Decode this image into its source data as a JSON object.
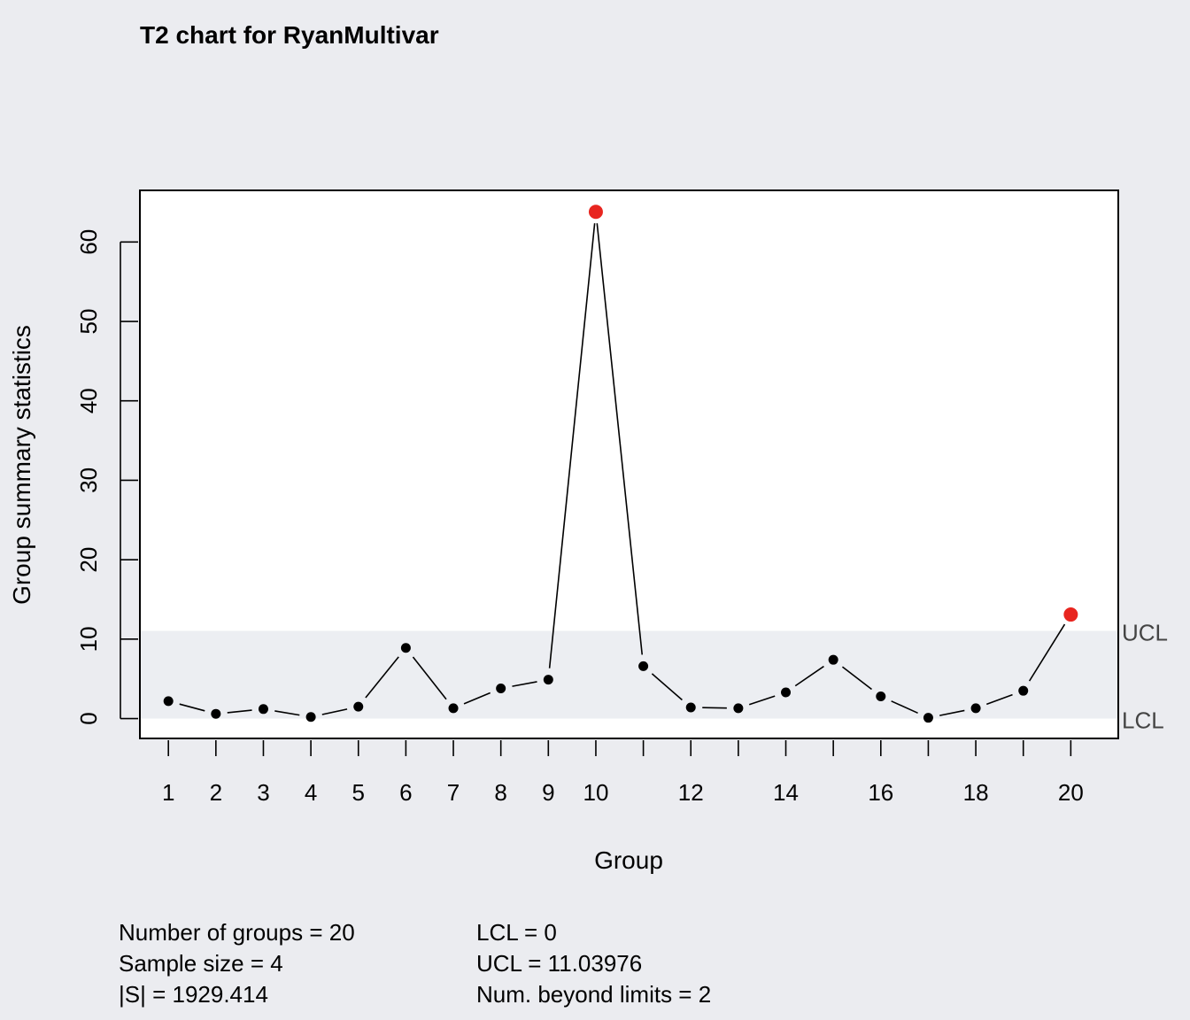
{
  "chart_data": {
    "type": "line",
    "title": "T2 chart for RyanMultivar",
    "xlabel": "Group",
    "ylabel": "Group summary statistics",
    "x": [
      1,
      2,
      3,
      4,
      5,
      6,
      7,
      8,
      9,
      10,
      11,
      12,
      13,
      14,
      15,
      16,
      17,
      18,
      19,
      20
    ],
    "values": [
      2.2,
      0.6,
      1.2,
      0.2,
      1.5,
      8.9,
      1.3,
      3.8,
      4.9,
      63.8,
      6.6,
      1.4,
      1.3,
      3.3,
      7.4,
      2.8,
      0.1,
      1.3,
      3.5,
      13.1
    ],
    "xlim": [
      0.4,
      21.0
    ],
    "ylim": [
      -2.5,
      66.5
    ],
    "x_tick_labels": [
      "1",
      "2",
      "3",
      "4",
      "5",
      "6",
      "7",
      "8",
      "9",
      "10",
      "",
      "12",
      "",
      "14",
      "",
      "16",
      "",
      "18",
      "",
      "20"
    ],
    "y_ticks": [
      0,
      10,
      20,
      30,
      40,
      50,
      60
    ],
    "limits": {
      "UCL": 11.03976,
      "LCL": 0
    },
    "limit_labels": {
      "ucl": "UCL",
      "lcl": "LCL"
    },
    "beyond_limits_color": "#e8251f",
    "in_control_color": "#000000",
    "control_band_color": "#eceef2",
    "background_color": "#ebecf0",
    "plot_background": "#ffffff",
    "grid": false
  },
  "stats": {
    "left": [
      "Number of groups = 20",
      "Sample size = 4",
      "|S| = 1929.414"
    ],
    "right": [
      "LCL = 0",
      "UCL = 11.03976",
      "Num. beyond limits = 2"
    ]
  }
}
